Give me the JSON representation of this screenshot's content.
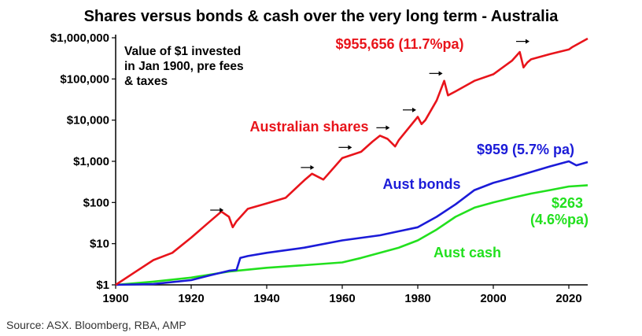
{
  "chart_data": {
    "type": "line",
    "title": "Shares versus bonds & cash over the very long term - Australia",
    "note_lines": [
      "Value of $1 invested",
      "in Jan 1900, pre fees",
      "& taxes"
    ],
    "source": "Source: ASX. Bloomberg, RBA, AMP",
    "xlim": [
      1900,
      2025
    ],
    "x_ticks": [
      "1900",
      "1920",
      "1940",
      "1960",
      "1980",
      "2000",
      "2020"
    ],
    "y_scale": "log",
    "ylim": [
      1,
      1000000
    ],
    "y_ticks": [
      "$1",
      "$10",
      "$100",
      "$1,000",
      "$10,000",
      "$100,000",
      "$1,000,000"
    ],
    "grid": false,
    "colors": {
      "shares": "#e8141b",
      "bonds": "#1b1bd8",
      "cash": "#22e01e",
      "arrow": "#000000",
      "axis": "#000000"
    },
    "series": [
      {
        "name": "Australian shares",
        "end_label": "$955,656 (11.7%pa)",
        "x": [
          1900,
          1905,
          1910,
          1915,
          1920,
          1925,
          1928,
          1930,
          1931,
          1932,
          1935,
          1940,
          1945,
          1950,
          1952,
          1955,
          1960,
          1965,
          1968,
          1970,
          1972,
          1974,
          1975,
          1980,
          1981,
          1982,
          1985,
          1987,
          1988,
          1990,
          1995,
          2000,
          2005,
          2007,
          2008,
          2009,
          2010,
          2015,
          2020,
          2021,
          2025
        ],
        "y": [
          1,
          2,
          4,
          6,
          14,
          35,
          60,
          45,
          25,
          35,
          70,
          95,
          130,
          350,
          500,
          360,
          1200,
          1700,
          3000,
          4200,
          3500,
          2300,
          3300,
          12000,
          8000,
          10000,
          30000,
          90000,
          40000,
          50000,
          90000,
          130000,
          280000,
          450000,
          190000,
          250000,
          300000,
          400000,
          520000,
          600000,
          955656
        ]
      },
      {
        "name": "Aust bonds",
        "end_label": "$959 (5.7% pa)",
        "x": [
          1900,
          1910,
          1920,
          1925,
          1930,
          1932,
          1933,
          1935,
          1940,
          1950,
          1960,
          1970,
          1975,
          1980,
          1985,
          1990,
          1995,
          2000,
          2005,
          2010,
          2015,
          2020,
          2022,
          2025
        ],
        "y": [
          1,
          1.05,
          1.3,
          1.7,
          2.2,
          2.3,
          4.5,
          5,
          6,
          8,
          12,
          16,
          20,
          25,
          45,
          90,
          200,
          300,
          400,
          550,
          750,
          1000,
          800,
          959
        ]
      },
      {
        "name": "Aust cash",
        "end_label_lines": [
          "$263",
          "(4.6%pa)"
        ],
        "x": [
          1900,
          1910,
          1920,
          1930,
          1940,
          1950,
          1960,
          1965,
          1970,
          1975,
          1980,
          1985,
          1990,
          1995,
          2000,
          2005,
          2010,
          2015,
          2020,
          2025
        ],
        "y": [
          1,
          1.2,
          1.5,
          2.1,
          2.6,
          3,
          3.5,
          4.5,
          6,
          8,
          12,
          22,
          45,
          75,
          100,
          130,
          165,
          200,
          245,
          263
        ]
      }
    ],
    "annotations": [
      "Australian shares",
      "Aust bonds",
      "Aust cash"
    ],
    "arrow_marks": [
      {
        "x": 1929,
        "y": 48
      },
      {
        "x": 1953,
        "y": 520
      },
      {
        "x": 1963,
        "y": 1600
      },
      {
        "x": 1973,
        "y": 4800
      },
      {
        "x": 1980,
        "y": 13000
      },
      {
        "x": 1987,
        "y": 100000
      },
      {
        "x": 2010,
        "y": 600000
      }
    ]
  }
}
